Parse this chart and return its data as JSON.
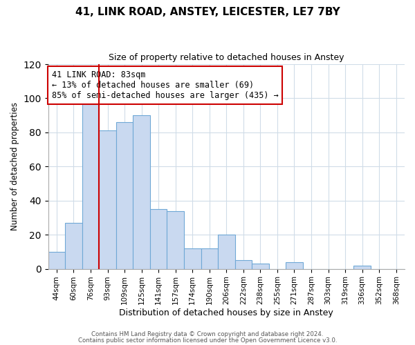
{
  "title": "41, LINK ROAD, ANSTEY, LEICESTER, LE7 7BY",
  "subtitle": "Size of property relative to detached houses in Anstey",
  "xlabel": "Distribution of detached houses by size in Anstey",
  "ylabel": "Number of detached properties",
  "bar_color": "#c9d9f0",
  "bar_edge_color": "#6fa8d6",
  "highlight_bar_edge_color": "#cc0000",
  "bins": [
    "44sqm",
    "60sqm",
    "76sqm",
    "93sqm",
    "109sqm",
    "125sqm",
    "141sqm",
    "157sqm",
    "174sqm",
    "190sqm",
    "206sqm",
    "222sqm",
    "238sqm",
    "255sqm",
    "271sqm",
    "287sqm",
    "303sqm",
    "319sqm",
    "336sqm",
    "352sqm",
    "368sqm"
  ],
  "values": [
    10,
    27,
    98,
    81,
    86,
    90,
    35,
    34,
    12,
    12,
    20,
    5,
    3,
    0,
    4,
    0,
    0,
    0,
    2,
    0,
    0
  ],
  "highlight_bin_index": 2,
  "annotation_title": "41 LINK ROAD: 83sqm",
  "annotation_line1": "← 13% of detached houses are smaller (69)",
  "annotation_line2": "85% of semi-detached houses are larger (435) →",
  "annotation_box_color": "#ffffff",
  "annotation_box_edge_color": "#cc0000",
  "ylim": [
    0,
    120
  ],
  "yticks": [
    0,
    20,
    40,
    60,
    80,
    100,
    120
  ],
  "footer1": "Contains HM Land Registry data © Crown copyright and database right 2024.",
  "footer2": "Contains public sector information licensed under the Open Government Licence v3.0.",
  "background_color": "#ffffff",
  "grid_color": "#d0dce8"
}
